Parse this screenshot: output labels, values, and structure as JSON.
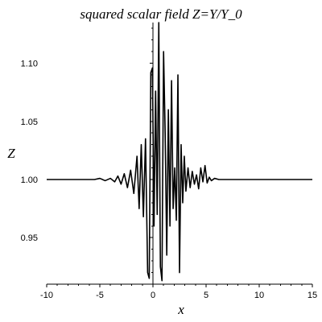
{
  "chart_data": {
    "type": "line",
    "title": "squared scalar field Z=Y/Y_0",
    "xlabel": "x",
    "ylabel": "Z",
    "xlim": [
      -10,
      15
    ],
    "ylim": [
      0.91,
      1.135
    ],
    "xticks": [
      -10,
      -5,
      0,
      5,
      10,
      15
    ],
    "xtick_labels": [
      "-10",
      "-5",
      "0",
      "5",
      "10",
      "15"
    ],
    "yticks": [
      0.95,
      1.0,
      1.05,
      1.1
    ],
    "ytick_labels": [
      "0.95",
      "1.00",
      "1.05",
      "1.10"
    ],
    "grid": false,
    "legend": "none",
    "series_color": "#000000",
    "series": [
      {
        "x": [
          -10,
          -5.5,
          -5.0,
          -4.5,
          -4.0,
          -3.6,
          -3.3,
          -3.0,
          -2.7,
          -2.4,
          -2.1,
          -1.8,
          -1.5,
          -1.3,
          -1.1,
          -0.9,
          -0.7,
          -0.5,
          -0.35,
          -0.2,
          -0.05,
          0.1,
          0.25,
          0.4,
          0.55,
          0.7,
          0.85,
          1.0,
          1.15,
          1.3,
          1.45,
          1.6,
          1.75,
          1.9,
          2.05,
          2.2,
          2.35,
          2.5,
          2.65,
          2.8,
          2.95,
          3.1,
          3.3,
          3.5,
          3.7,
          3.9,
          4.1,
          4.3,
          4.5,
          4.7,
          4.9,
          5.1,
          5.3,
          5.5,
          5.8,
          6.2,
          6.6,
          7.0,
          15
        ],
        "y": [
          1.0,
          1.0,
          1.001,
          0.999,
          1.001,
          0.998,
          1.003,
          0.996,
          1.005,
          0.993,
          1.008,
          0.988,
          1.02,
          0.975,
          1.03,
          0.968,
          1.035,
          0.92,
          0.915,
          1.092,
          1.096,
          0.96,
          1.076,
          0.97,
          1.135,
          0.925,
          0.913,
          1.11,
          1.04,
          0.935,
          1.06,
          0.96,
          1.085,
          0.975,
          1.01,
          0.965,
          1.09,
          0.92,
          1.03,
          0.98,
          1.02,
          0.99,
          1.01,
          0.993,
          1.007,
          0.996,
          1.004,
          0.992,
          1.01,
          0.998,
          1.012,
          0.997,
          1.002,
          0.999,
          1.001,
          1.0,
          1.0,
          1.0,
          1.0
        ]
      }
    ]
  }
}
